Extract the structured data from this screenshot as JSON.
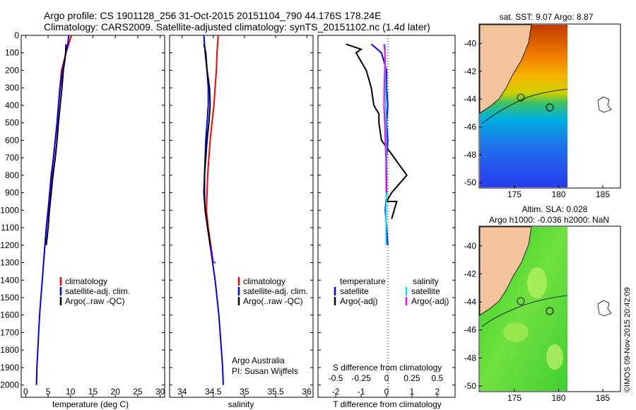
{
  "title": {
    "line1": "Argo profile: CS 1901128_256 31-Oct-2015 20151104_790 44.176S 178.24E",
    "line2": "Climatology: CARS2009. Satellite-adjusted climatology: synTS_20151102.nc (1.4d later)"
  },
  "depth_ticks": [
    "0",
    "100",
    "200",
    "300",
    "400",
    "500",
    "600",
    "700",
    "800",
    "900",
    "1000",
    "1100",
    "1200",
    "1300",
    "1400",
    "1500",
    "1600",
    "1700",
    "1800",
    "1900",
    "2000"
  ],
  "colors": {
    "climatology": "#ff0000",
    "satellite": "#0000ff",
    "argo": "#000000",
    "sal_satellite": "#00e5ee",
    "sal_argo": "#ff00ff",
    "land": "#f4c49c"
  },
  "sidebar_stamp": "©IMOS 09-Nov-2015 20:42:09",
  "panels": {
    "temperature": {
      "xlabel": "temperature (deg C)",
      "xticks": [
        "0",
        "5",
        "10",
        "15",
        "20",
        "25",
        "30"
      ],
      "legend": [
        "climatology",
        "satellite-adj. clim.",
        "Argo(..raw -QC)"
      ]
    },
    "salinity": {
      "xlabel": "salinity",
      "xticks": [
        "34",
        "34.5",
        "35",
        "35.5",
        "36"
      ],
      "legend": [
        "climatology",
        "satellite-adj. clim.",
        "Argo(..raw -QC)"
      ],
      "credit_line1": "Argo Australia",
      "credit_line2": "PI: Susan Wijffels"
    },
    "difference": {
      "top_xlabel": "S difference from climatology",
      "top_xticks": [
        "-0.5",
        "-0.25",
        "0",
        "0.25",
        "0.5"
      ],
      "xlabel": "T difference from climatology",
      "xticks": [
        "-2",
        "-1",
        "0",
        "1",
        "2"
      ],
      "legend_temp_title": "temperature",
      "legend_sal_title": "salinity",
      "legend_items": [
        "satellite",
        "Argo(-adj)",
        "satellite",
        "Argo(-adj)"
      ]
    },
    "sst_map": {
      "title": "sat. SST: 9.07 Argo: 8.87",
      "yticks": [
        "-40",
        "-42",
        "-44",
        "-46",
        "-48",
        "-50"
      ],
      "xticks": [
        "175",
        "180",
        "185"
      ]
    },
    "sla_map": {
      "title_line1": "Altim. SLA: 0.028",
      "title_line2": "Argo h1000: -0.036 h2000: NaN",
      "yticks": [
        "-40",
        "-42",
        "-44",
        "-46",
        "-48",
        "-50"
      ],
      "xticks": [
        "175",
        "180",
        "185"
      ]
    }
  },
  "chart_data": [
    {
      "type": "line",
      "panel": "temperature",
      "xlabel": "temperature (deg C)",
      "ylabel": "",
      "xlim": [
        -1,
        31
      ],
      "ylim": [
        2070,
        0
      ],
      "y_reversed": true,
      "series": [
        {
          "name": "climatology",
          "color": "#ff0000",
          "x": [
            10.2,
            9.6,
            9.0,
            8.5,
            8.0,
            7.6,
            7.3,
            7.0,
            6.6,
            6.2,
            5.8,
            5.0,
            4.6,
            4.3,
            4.0
          ],
          "y": [
            0,
            50,
            100,
            150,
            200,
            300,
            400,
            500,
            600,
            700,
            800,
            1000,
            1100,
            1200,
            1300
          ]
        },
        {
          "name": "satellite-adj. clim.",
          "color": "#0000ff",
          "x": [
            9.6,
            9.4,
            9.0,
            8.6,
            8.2,
            7.7,
            7.3,
            7.0,
            6.6,
            6.2,
            5.7,
            5.0,
            4.6,
            4.3,
            4.0,
            3.7,
            3.4,
            3.1,
            2.9,
            2.7,
            2.5,
            2.4
          ],
          "y": [
            0,
            50,
            100,
            150,
            200,
            300,
            400,
            500,
            600,
            700,
            800,
            1000,
            1100,
            1200,
            1300,
            1400,
            1500,
            1600,
            1700,
            1800,
            1900,
            2000
          ]
        },
        {
          "name": "Argo(..raw -QC)",
          "color": "#000000",
          "x": [
            9.0,
            8.9,
            8.7,
            8.4,
            8.1,
            7.7,
            7.3,
            7.0,
            6.6,
            6.1,
            5.7,
            5.3,
            5.0,
            4.6
          ],
          "y": [
            50,
            100,
            150,
            200,
            300,
            400,
            500,
            600,
            700,
            800,
            900,
            1000,
            1100,
            1200
          ]
        }
      ]
    },
    {
      "type": "line",
      "panel": "salinity",
      "xlabel": "salinity",
      "ylabel": "",
      "xlim": [
        33.8,
        36.1
      ],
      "ylim": [
        2070,
        0
      ],
      "y_reversed": true,
      "series": [
        {
          "name": "climatology",
          "color": "#ff0000",
          "x": [
            34.58,
            34.56,
            34.55,
            34.53,
            34.51,
            34.48,
            34.45,
            34.43,
            34.41,
            34.4,
            34.39,
            34.42,
            34.46,
            34.5,
            34.54
          ],
          "y": [
            0,
            100,
            200,
            300,
            400,
            500,
            600,
            700,
            800,
            900,
            1000,
            1100,
            1200,
            1300,
            1300
          ]
        },
        {
          "name": "satellite-adj. clim.",
          "color": "#0000ff",
          "x": [
            34.35,
            34.37,
            34.4,
            34.42,
            34.42,
            34.4,
            34.38,
            34.37,
            34.36,
            34.36,
            34.37,
            34.41,
            34.45,
            34.49,
            34.53,
            34.56,
            34.59,
            34.61,
            34.63,
            34.65,
            34.66
          ],
          "y": [
            0,
            100,
            200,
            300,
            400,
            500,
            600,
            700,
            800,
            900,
            1000,
            1100,
            1200,
            1300,
            1400,
            1500,
            1600,
            1700,
            1800,
            1900,
            2000
          ]
        },
        {
          "name": "Argo(..raw -QC)",
          "color": "#000000",
          "x": [
            34.35,
            34.38,
            34.4,
            34.44,
            34.45,
            34.43,
            34.4,
            34.38,
            34.36,
            34.35,
            34.37,
            34.41,
            34.45
          ],
          "y": [
            50,
            100,
            200,
            300,
            400,
            500,
            600,
            700,
            800,
            900,
            1000,
            1100,
            1200
          ]
        }
      ]
    },
    {
      "type": "line",
      "panel": "difference",
      "xlabel": "T difference from climatology",
      "x2label": "S difference from climatology",
      "xlim": [
        -2.7,
        2.7
      ],
      "x2lim": [
        -0.675,
        0.675
      ],
      "ylim": [
        2070,
        0
      ],
      "y_reversed": true,
      "series": [
        {
          "name": "temperature satellite",
          "color": "#0000ff",
          "x": [
            -0.6,
            -0.2,
            0.0,
            0.0,
            0.05,
            0.0,
            0.05,
            0.0,
            0.0,
            0.0,
            -0.05,
            0.0,
            0.05
          ],
          "y": [
            50,
            100,
            200,
            300,
            400,
            500,
            600,
            700,
            800,
            900,
            1000,
            1100,
            1200
          ]
        },
        {
          "name": "temperature Argo(-adj)",
          "color": "#000000",
          "x": [
            -1.6,
            -1.0,
            -1.2,
            -0.8,
            -0.6,
            -0.5,
            -0.3,
            -0.3,
            -0.2,
            0.3,
            0.8,
            0.5,
            0.2,
            0.0,
            0.4,
            0.3,
            0.2
          ],
          "y": [
            50,
            80,
            100,
            200,
            300,
            400,
            450,
            500,
            600,
            700,
            800,
            850,
            900,
            950,
            950,
            1000,
            1050
          ]
        },
        {
          "name": "salinity satellite",
          "color": "#00e5ee",
          "x": [
            -0.05,
            -0.06,
            -0.05,
            -0.04,
            -0.03,
            -0.02,
            -0.01,
            0.0,
            -0.01,
            -0.01,
            -0.02,
            -0.02
          ],
          "y": [
            50,
            100,
            200,
            300,
            400,
            500,
            600,
            700,
            800,
            900,
            1000,
            1200
          ]
        },
        {
          "name": "salinity Argo(-adj)",
          "color": "#ff00ff",
          "x": [
            -0.1,
            -0.06,
            -0.07,
            -0.09,
            -0.1,
            -0.07,
            -0.05,
            -0.02,
            -0.02,
            -0.01
          ],
          "y": [
            50,
            100,
            200,
            300,
            400,
            500,
            600,
            700,
            800,
            900
          ]
        }
      ]
    }
  ]
}
